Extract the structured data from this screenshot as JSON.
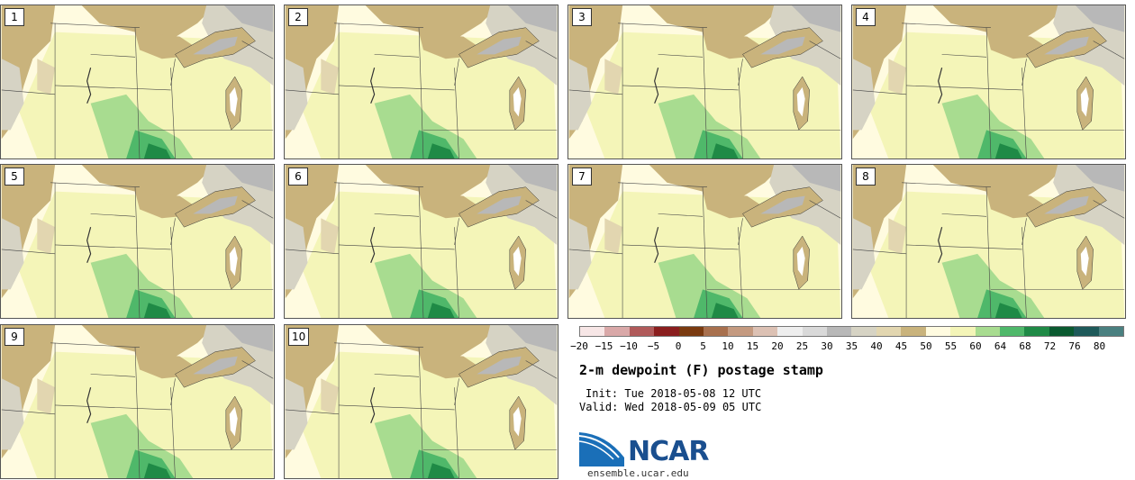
{
  "panels": [
    "1",
    "2",
    "3",
    "4",
    "5",
    "6",
    "7",
    "8",
    "9",
    "10"
  ],
  "colorbar": {
    "ticks": [
      "−20",
      "−15",
      "−10",
      "−5",
      "0",
      "5",
      "10",
      "15",
      "20",
      "25",
      "30",
      "35",
      "40",
      "45",
      "50",
      "55",
      "60",
      "64",
      "68",
      "72",
      "76",
      "80"
    ],
    "colors": [
      "#f7e6e6",
      "#d9a8a8",
      "#b05a5a",
      "#8a1e1e",
      "#7a3a10",
      "#a8704e",
      "#c49a80",
      "#dcc1b4",
      "#eeeeee",
      "#d9d9d9",
      "#b8b8b8",
      "#d6d3c4",
      "#e2d6b0",
      "#c9b37c",
      "#fffbe0",
      "#f4f5b8",
      "#a8dc90",
      "#4fb86a",
      "#1f8a46",
      "#0a5a30",
      "#1e5a5a",
      "#4a8080"
    ]
  },
  "title": "2-m dewpoint (F) postage stamp",
  "init": "Init: Tue 2018-05-08 12 UTC",
  "valid": "Valid: Wed 2018-05-09 05 UTC",
  "logo": {
    "text": "NCAR",
    "site": "ensemble.ucar.edu"
  }
}
